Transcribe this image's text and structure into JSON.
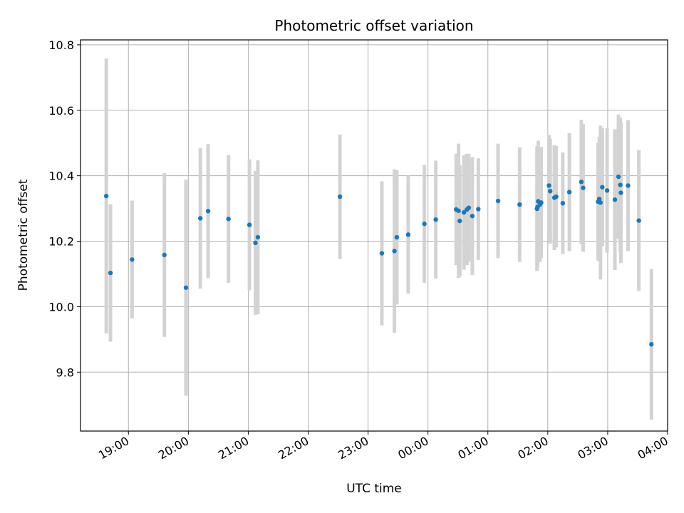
{
  "chart_data": {
    "type": "scatter",
    "title": "Photometric offset variation",
    "xlabel": "UTC time",
    "ylabel": "Photometric offset",
    "x_unit": "hours since 00:00 UTC (negative = previous day)",
    "xlim": [
      -5.8,
      4.0
    ],
    "ylim": [
      9.62,
      10.815
    ],
    "grid": true,
    "xticks": [
      {
        "value": -5,
        "label": "19:00"
      },
      {
        "value": -4,
        "label": "20:00"
      },
      {
        "value": -3,
        "label": "21:00"
      },
      {
        "value": -2,
        "label": "22:00"
      },
      {
        "value": -1,
        "label": "23:00"
      },
      {
        "value": 0,
        "label": "00:00"
      },
      {
        "value": 1,
        "label": "01:00"
      },
      {
        "value": 2,
        "label": "02:00"
      },
      {
        "value": 3,
        "label": "03:00"
      },
      {
        "value": 4,
        "label": "04:00"
      }
    ],
    "yticks": [
      {
        "value": 9.8,
        "label": "9.8"
      },
      {
        "value": 10.0,
        "label": "10.0"
      },
      {
        "value": 10.2,
        "label": "10.2"
      },
      {
        "value": 10.4,
        "label": "10.4"
      },
      {
        "value": 10.6,
        "label": "10.6"
      },
      {
        "value": 10.8,
        "label": "10.8"
      }
    ],
    "marker_color": "#1f77b4",
    "errorbar_color": "#d3d3d3",
    "series": [
      {
        "name": "offset",
        "x": [
          -5.37,
          -5.3,
          -4.94,
          -4.4,
          -4.04,
          -3.8,
          -3.67,
          -3.33,
          -2.98,
          -2.88,
          -2.84,
          -1.47,
          -0.77,
          -0.56,
          -0.52,
          -0.33,
          -0.06,
          0.13,
          0.47,
          0.51,
          0.53,
          0.6,
          0.65,
          0.68,
          0.74,
          0.84,
          1.17,
          1.53,
          1.82,
          1.83,
          1.84,
          1.87,
          1.89,
          2.02,
          2.04,
          2.11,
          2.14,
          2.25,
          2.36,
          2.56,
          2.59,
          2.84,
          2.86,
          2.88,
          2.91,
          2.99,
          3.12,
          3.18,
          3.21,
          3.22,
          3.34,
          3.52,
          3.73
        ],
        "y": [
          10.338,
          10.103,
          10.144,
          10.158,
          10.058,
          10.27,
          10.292,
          10.268,
          10.25,
          10.195,
          10.212,
          10.336,
          10.163,
          10.17,
          10.212,
          10.22,
          10.253,
          10.266,
          10.297,
          10.293,
          10.262,
          10.288,
          10.297,
          10.302,
          10.277,
          10.298,
          10.323,
          10.312,
          10.299,
          10.305,
          10.322,
          10.312,
          10.318,
          10.37,
          10.353,
          10.333,
          10.336,
          10.316,
          10.35,
          10.381,
          10.363,
          10.321,
          10.329,
          10.318,
          10.365,
          10.355,
          10.327,
          10.397,
          10.372,
          10.348,
          10.37,
          10.263,
          9.885
        ],
        "yerr": [
          0.42,
          0.21,
          0.18,
          0.25,
          0.33,
          0.215,
          0.205,
          0.195,
          0.2,
          0.22,
          0.235,
          0.19,
          0.22,
          0.25,
          0.205,
          0.18,
          0.18,
          0.18,
          0.17,
          0.205,
          0.17,
          0.175,
          0.17,
          0.165,
          0.18,
          0.155,
          0.175,
          0.175,
          0.19,
          0.185,
          0.185,
          0.175,
          0.17,
          0.155,
          0.16,
          0.16,
          0.155,
          0.155,
          0.18,
          0.19,
          0.195,
          0.18,
          0.19,
          0.235,
          0.18,
          0.19,
          0.215,
          0.19,
          0.205,
          0.215,
          0.2,
          0.215,
          0.23
        ]
      }
    ]
  }
}
